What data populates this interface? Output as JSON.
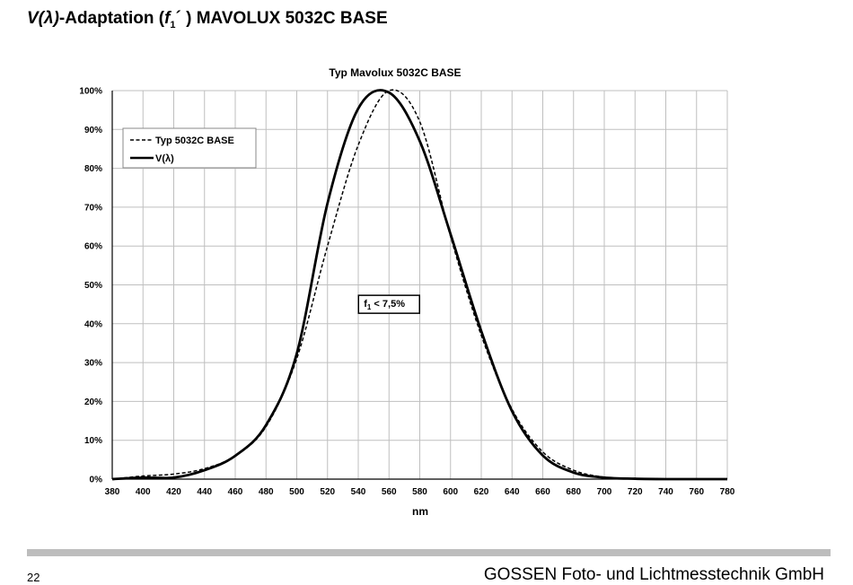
{
  "document": {
    "title_v": "V(λ)",
    "title_rest": "-Adaptation (",
    "title_f": "f",
    "title_sub": "1",
    "title_prime": "´",
    "title_end": " ) MAVOLUX 5032C BASE",
    "page_number": "22",
    "company": "GOSSEN Foto- und Lichtmesstechnik GmbH"
  },
  "colors": {
    "line": "#000000",
    "grid": "#bfbfbf",
    "footer_bar": "#bdbdbd"
  },
  "chart_data": {
    "type": "line",
    "title": "Typ Mavolux 5032C BASE",
    "xlabel": "nm",
    "ylabel": "",
    "xlim": [
      380,
      780
    ],
    "ylim": [
      0,
      100
    ],
    "x_ticks": [
      380,
      400,
      420,
      440,
      460,
      480,
      500,
      520,
      540,
      560,
      580,
      600,
      620,
      640,
      660,
      680,
      700,
      720,
      740,
      760,
      780
    ],
    "y_ticks": [
      0,
      10,
      20,
      30,
      40,
      50,
      60,
      70,
      80,
      90,
      100
    ],
    "y_tick_suffix": "%",
    "grid": true,
    "legend_position": "top-left",
    "annotation": {
      "text_main": "f",
      "text_sub": "1",
      "text_rest": " < 7,5%",
      "x": 560,
      "y": 45
    },
    "series": [
      {
        "name": "Typ 5032C BASE",
        "style": "dashed",
        "x": [
          380,
          400,
          420,
          440,
          460,
          480,
          500,
          520,
          540,
          560,
          580,
          600,
          620,
          640,
          660,
          680,
          700,
          720,
          740,
          760,
          780
        ],
        "y": [
          0.0,
          0.8,
          1.3,
          2.7,
          6.0,
          13.5,
          31.0,
          60.0,
          86.0,
          100.0,
          92.0,
          62.5,
          37.0,
          18.0,
          7.0,
          2.3,
          0.5,
          0.1,
          0.0,
          0.0,
          0.0
        ]
      },
      {
        "name": "V(λ)",
        "style": "solid",
        "x": [
          380,
          400,
          420,
          440,
          460,
          480,
          500,
          520,
          540,
          560,
          580,
          600,
          620,
          640,
          660,
          680,
          700,
          720,
          740,
          760,
          780
        ],
        "y": [
          0.0,
          0.4,
          0.4,
          2.3,
          6.0,
          13.9,
          32.3,
          71.0,
          95.4,
          99.5,
          87.0,
          63.1,
          38.1,
          17.5,
          6.1,
          1.7,
          0.4,
          0.1,
          0.0,
          0.0,
          0.0
        ]
      }
    ]
  }
}
